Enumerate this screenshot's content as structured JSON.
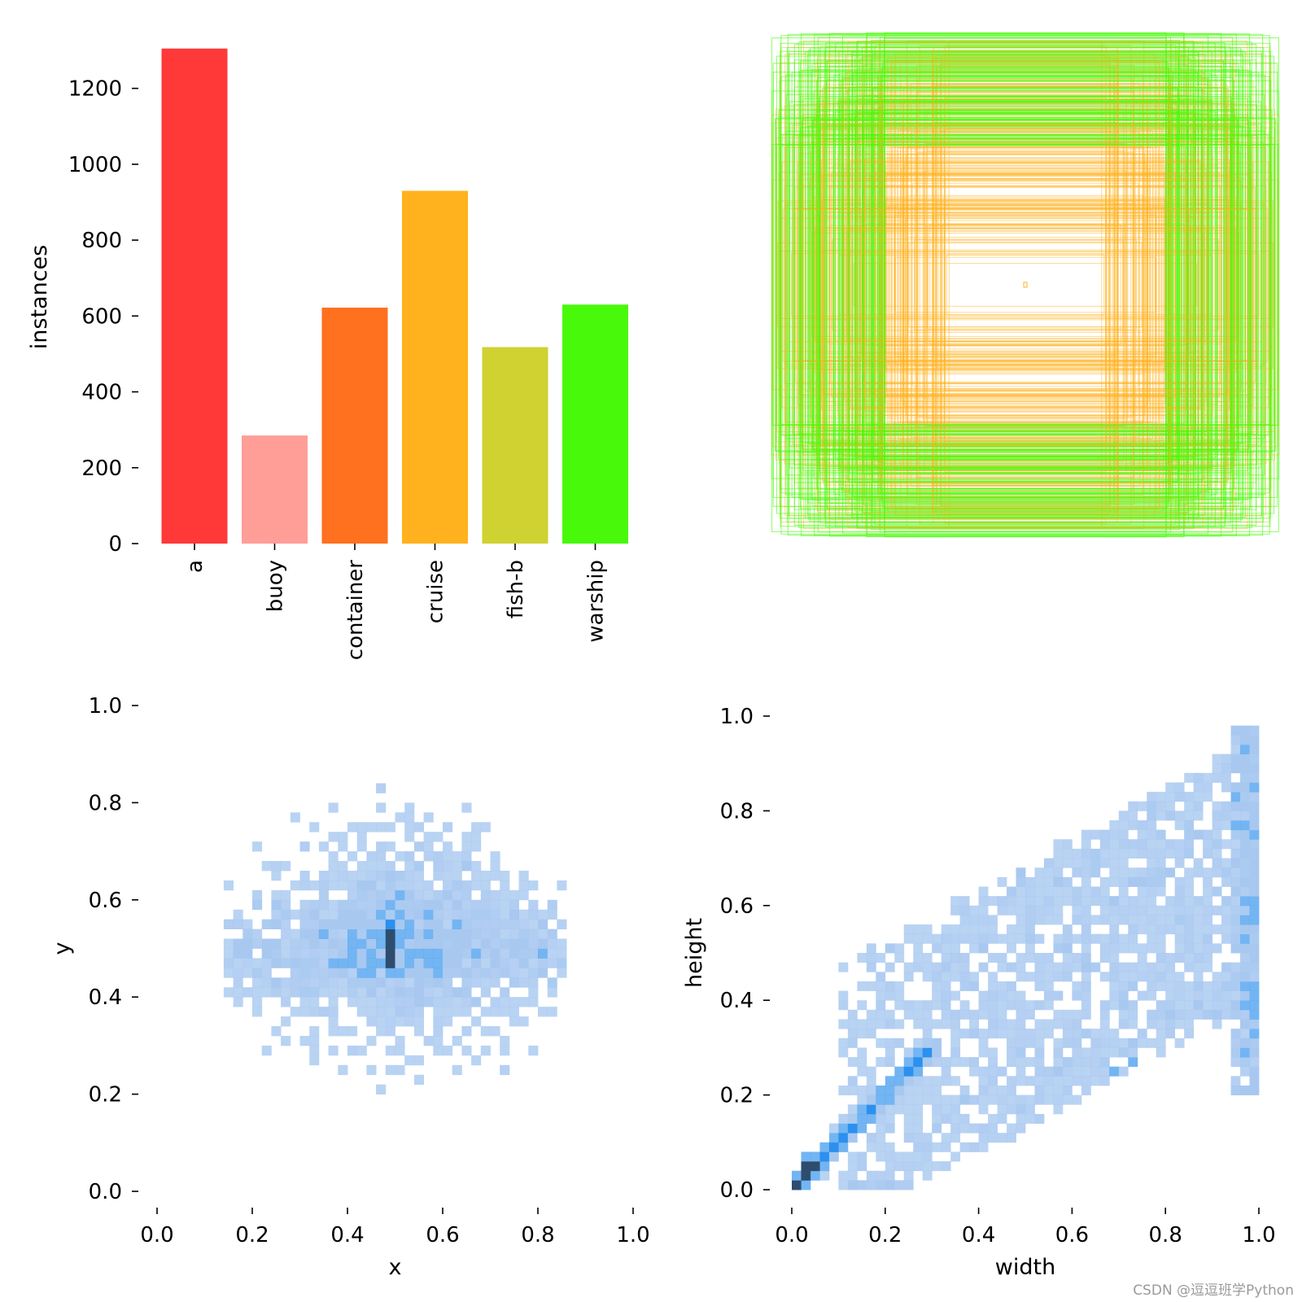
{
  "watermark": "CSDN @逗逗班学Python",
  "colors": {
    "hist_light": "#a8c8f0",
    "hist_mid": "#5aa8f0",
    "hist_bright": "#2c90ee",
    "hist_dark": "#2e4d6e",
    "tick": "#000000"
  },
  "chart_data": [
    {
      "type": "bar",
      "ylabel": "instances",
      "xlabel": "",
      "ylim": [
        0,
        1300
      ],
      "yticks": [
        0,
        200,
        400,
        600,
        800,
        1000,
        1200
      ],
      "categories": [
        "a",
        "buoy",
        "container",
        "cruise",
        "fish-b",
        "warship"
      ],
      "values": [
        1305,
        285,
        622,
        930,
        518,
        630
      ],
      "colors": [
        "#ff3838",
        "#ff9d97",
        "#ff701f",
        "#ffb21d",
        "#cfd231",
        "#48f90a"
      ]
    },
    {
      "type": "bounding-box-overlay",
      "description": "",
      "colors": [
        "#ffb21d",
        "#48f90a"
      ]
    },
    {
      "type": "heatmap",
      "xlabel": "x",
      "ylabel": "y",
      "xlim": [
        0,
        1
      ],
      "ylim": [
        0,
        1
      ],
      "xticks": [
        "0.0",
        "0.2",
        "0.4",
        "0.6",
        "0.8",
        "1.0"
      ],
      "yticks": [
        "0.0",
        "0.2",
        "0.4",
        "0.6",
        "0.8",
        "1.0"
      ],
      "peak": {
        "x": 0.5,
        "y": 0.5
      }
    },
    {
      "type": "heatmap",
      "xlabel": "width",
      "ylabel": "height",
      "xlim": [
        0,
        1
      ],
      "ylim": [
        0,
        1
      ],
      "xticks": [
        "0.0",
        "0.2",
        "0.4",
        "0.6",
        "0.8",
        "1.0"
      ],
      "yticks": [
        "0.0",
        "0.2",
        "0.4",
        "0.6",
        "0.8",
        "1.0"
      ],
      "peak": {
        "x": 0.05,
        "y": 0.05
      }
    }
  ]
}
